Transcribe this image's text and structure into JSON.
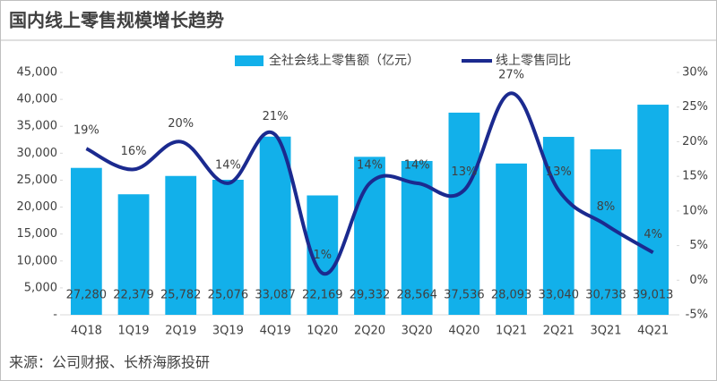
{
  "chart_data": {
    "type": "bar",
    "title": "国内线上零售规模增长趋势",
    "source": "来源：公司财报、长桥海豚投研",
    "categories": [
      "4Q18",
      "1Q19",
      "2Q19",
      "3Q19",
      "4Q19",
      "1Q20",
      "2Q20",
      "3Q20",
      "4Q20",
      "1Q21",
      "2Q21",
      "3Q21",
      "4Q21"
    ],
    "series": [
      {
        "name": "全社会线上零售额（亿元）",
        "type": "bar",
        "color": "#12b0ea",
        "values": [
          27280,
          22379,
          25782,
          25076,
          33087,
          22169,
          29332,
          28564,
          37536,
          28093,
          33040,
          30738,
          39013
        ],
        "value_labels": [
          "27,280",
          "22,379",
          "25,782",
          "25,076",
          "33,087",
          "22,169",
          "29,332",
          "28,564",
          "37,536",
          "28,093",
          "33,040",
          "30,738",
          "39,013"
        ]
      },
      {
        "name": "线上零售同比",
        "type": "line",
        "axis": "y2",
        "color": "#1b2a8f",
        "values": [
          19,
          16,
          20,
          14,
          21,
          1,
          14,
          14,
          13,
          27,
          13,
          8,
          4
        ],
        "value_labels": [
          "19%",
          "16%",
          "20%",
          "14%",
          "21%",
          "1%",
          "14%",
          "14%",
          "13%",
          "27%",
          "13%",
          "8%",
          "4%"
        ]
      }
    ],
    "ylim": [
      0,
      45000
    ],
    "yticks": [
      {
        "value": 0,
        "label": "-"
      },
      {
        "value": 5000,
        "label": "5,000"
      },
      {
        "value": 10000,
        "label": "10,000"
      },
      {
        "value": 15000,
        "label": "15,000"
      },
      {
        "value": 20000,
        "label": "20,000"
      },
      {
        "value": 25000,
        "label": "25,000"
      },
      {
        "value": 30000,
        "label": "30,000"
      },
      {
        "value": 35000,
        "label": "35,000"
      },
      {
        "value": 40000,
        "label": "40,000"
      },
      {
        "value": 45000,
        "label": "45,000"
      }
    ],
    "y2lim": [
      -5,
      30
    ],
    "y2ticks": [
      {
        "value": -5,
        "label": "-5%"
      },
      {
        "value": 0,
        "label": "0%"
      },
      {
        "value": 5,
        "label": "5%"
      },
      {
        "value": 10,
        "label": "10%"
      },
      {
        "value": 15,
        "label": "15%"
      },
      {
        "value": 20,
        "label": "20%"
      },
      {
        "value": 25,
        "label": "25%"
      },
      {
        "value": 30,
        "label": "30%"
      }
    ],
    "legend": "top"
  }
}
